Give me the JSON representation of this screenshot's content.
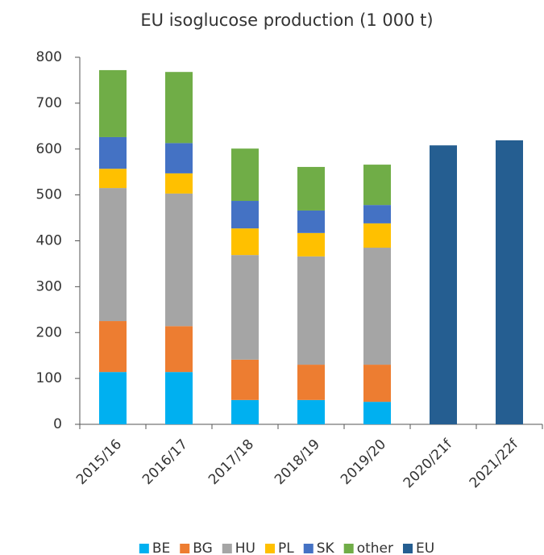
{
  "chart_data": {
    "type": "stacked_bar",
    "title": "EU isoglucose production (1 000 t)",
    "categories": [
      "2015/16",
      "2016/17",
      "2017/18",
      "2018/19",
      "2019/20",
      "2020/21f",
      "2021/22f"
    ],
    "series": [
      {
        "name": "BE",
        "color": "#00b0f0",
        "values": [
          114,
          114,
          53,
          53,
          49,
          null,
          null
        ]
      },
      {
        "name": "BG",
        "color": "#ed7d31",
        "values": [
          111,
          100,
          88,
          77,
          81,
          null,
          null
        ]
      },
      {
        "name": "HU",
        "color": "#a5a5a5",
        "values": [
          290,
          289,
          228,
          236,
          255,
          null,
          null
        ]
      },
      {
        "name": "PL",
        "color": "#ffc000",
        "values": [
          42,
          44,
          58,
          51,
          53,
          null,
          null
        ]
      },
      {
        "name": "SK",
        "color": "#4472c4",
        "values": [
          69,
          66,
          60,
          49,
          40,
          null,
          null
        ]
      },
      {
        "name": "other",
        "color": "#70ad47",
        "values": [
          146,
          155,
          114,
          95,
          88,
          null,
          null
        ]
      },
      {
        "name": "EU",
        "color": "#255e91",
        "values": [
          null,
          null,
          null,
          null,
          null,
          608,
          619
        ]
      }
    ],
    "ylim": [
      0,
      800
    ],
    "yticks": [
      0,
      100,
      200,
      300,
      400,
      500,
      600,
      700,
      800
    ],
    "grid": false,
    "legend": "bottom"
  }
}
